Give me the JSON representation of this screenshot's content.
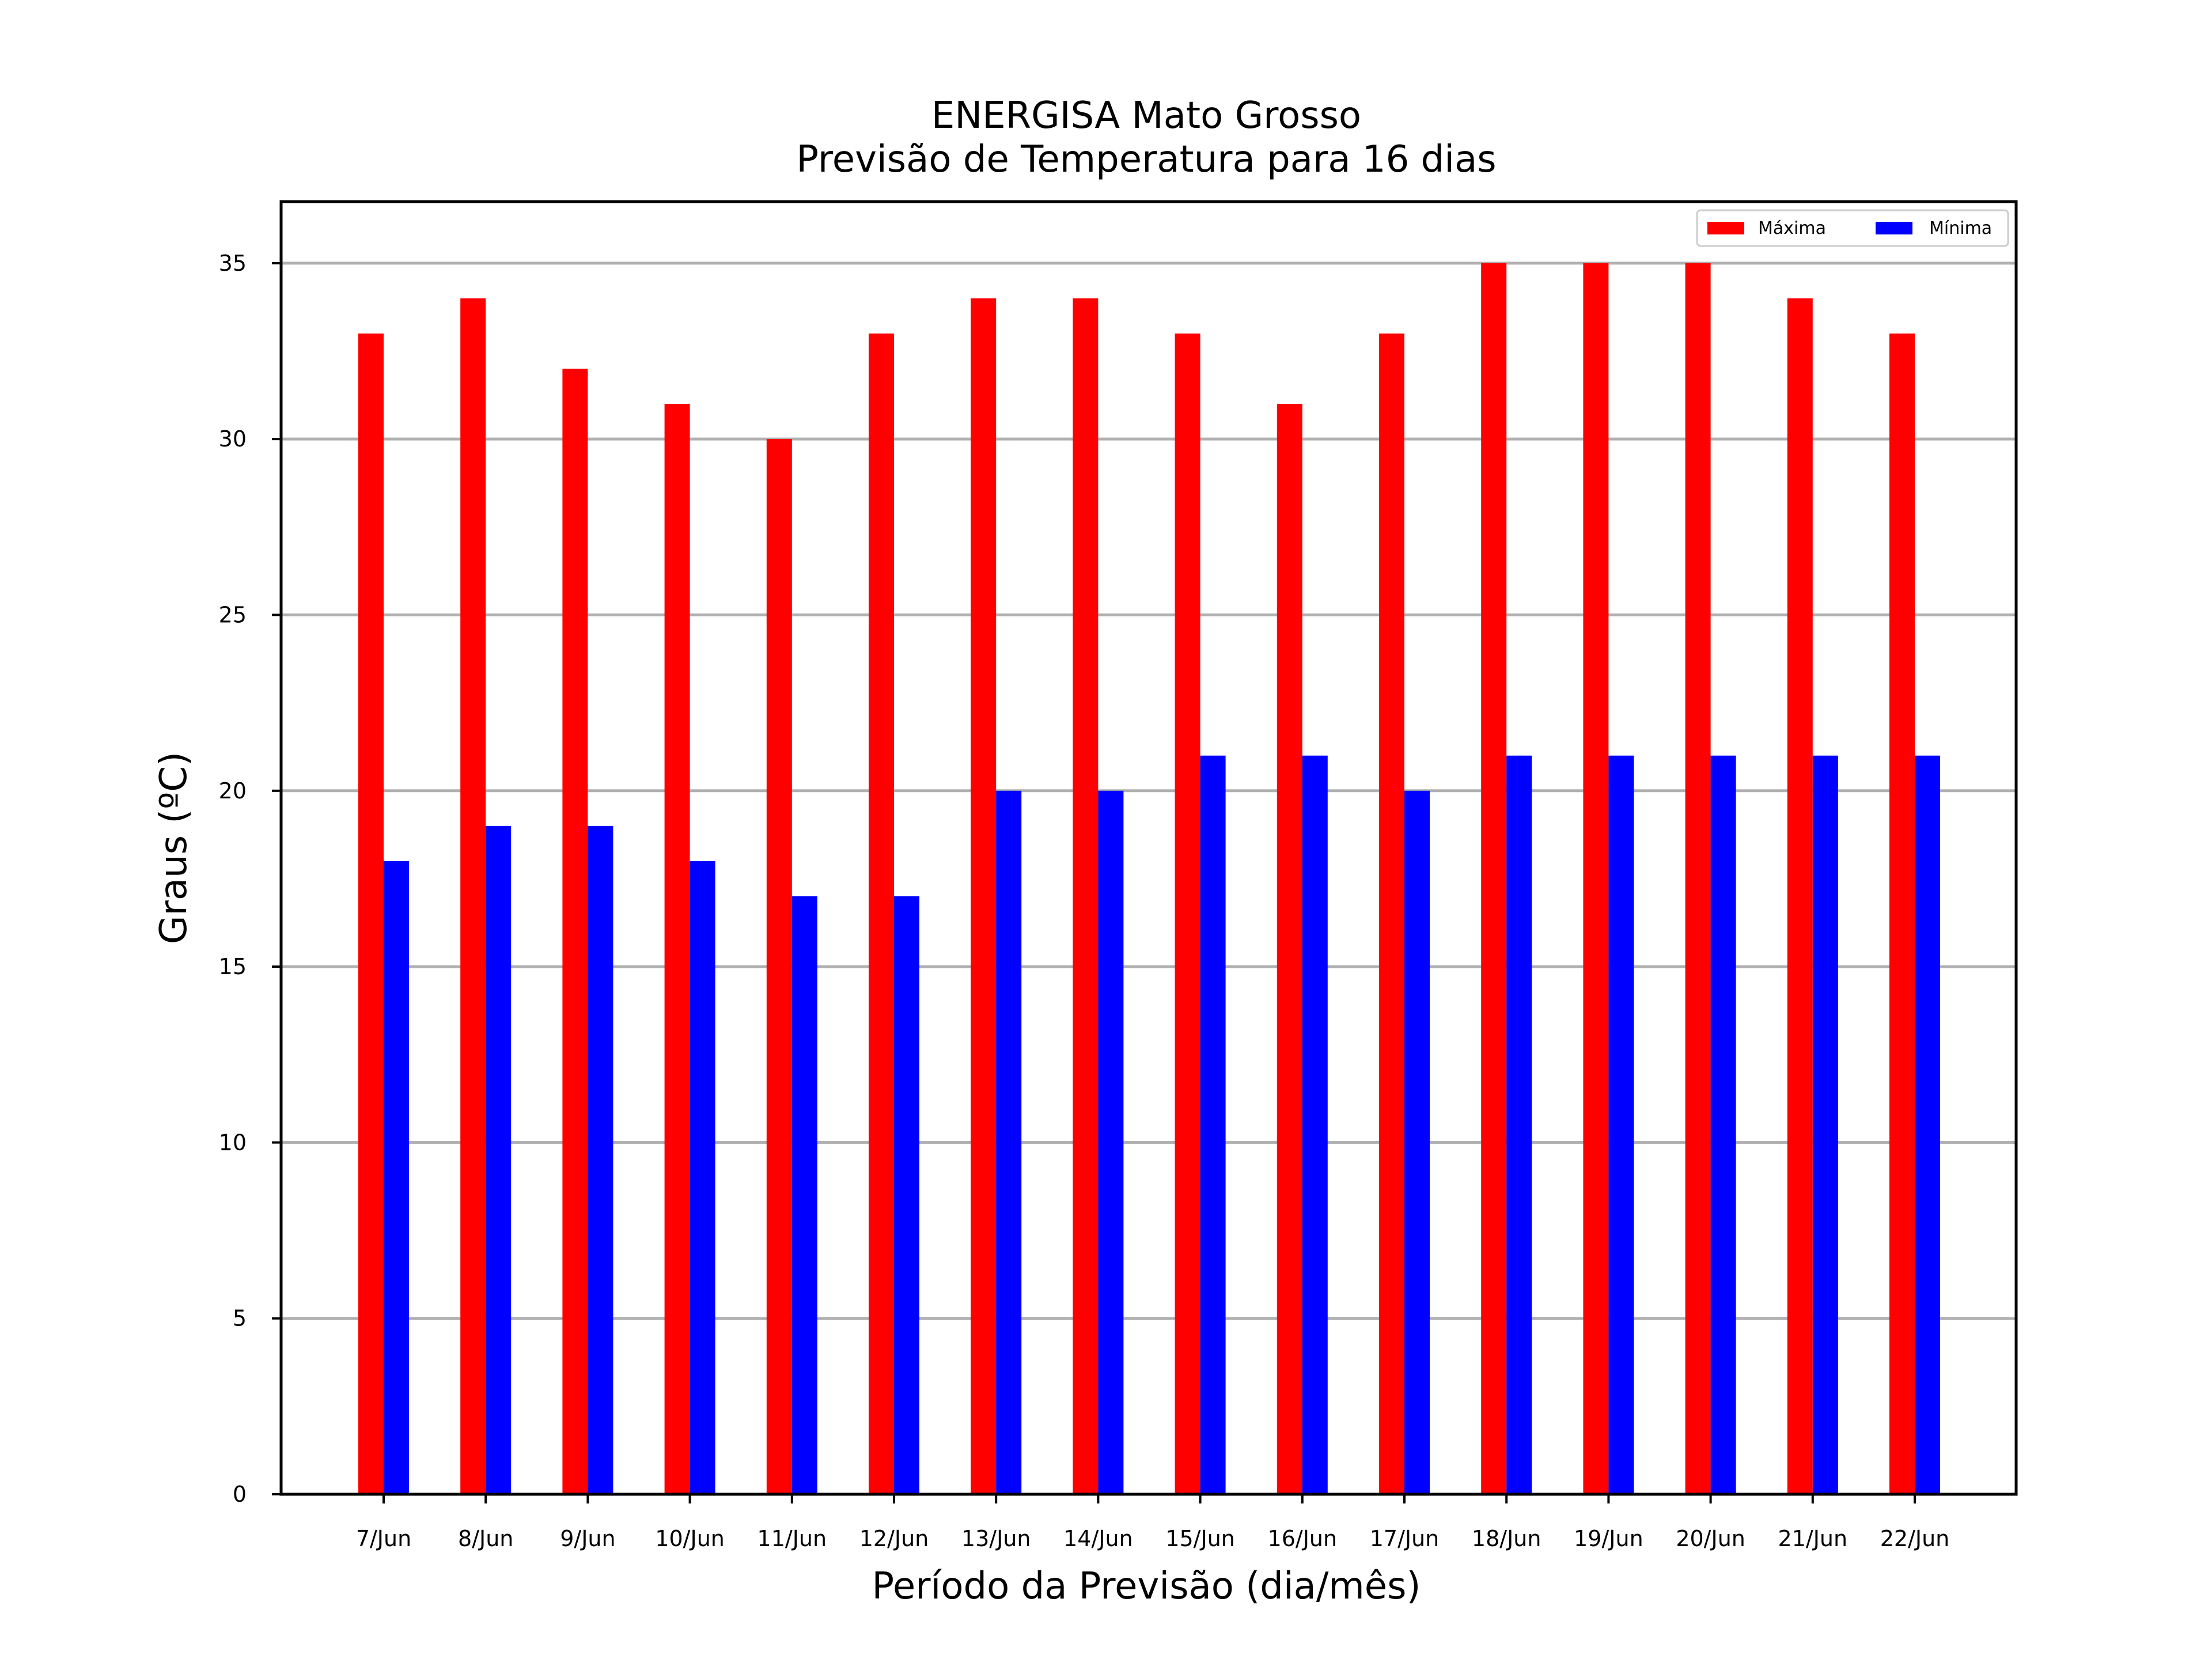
{
  "chart_data": {
    "type": "bar",
    "title": "ENERGISA Mato Grosso",
    "subtitle": "Previsão de Temperatura para 16 dias",
    "xlabel": "Período da Previsão (dia/mês)",
    "ylabel": "Graus (ºC)",
    "ylim": [
      0,
      36.75
    ],
    "yticks": [
      0,
      5,
      10,
      15,
      20,
      25,
      30,
      35
    ],
    "grid": "horizontal",
    "legend_position": "top-right",
    "categories": [
      "7/Jun",
      "8/Jun",
      "9/Jun",
      "10/Jun",
      "11/Jun",
      "12/Jun",
      "13/Jun",
      "14/Jun",
      "15/Jun",
      "16/Jun",
      "17/Jun",
      "18/Jun",
      "19/Jun",
      "20/Jun",
      "21/Jun",
      "22/Jun"
    ],
    "series": [
      {
        "name": "Máxima",
        "color": "#ff0000",
        "values": [
          33,
          34,
          32,
          31,
          30,
          33,
          34,
          34,
          33,
          31,
          33,
          35,
          35,
          35,
          34,
          33
        ]
      },
      {
        "name": "Mínima",
        "color": "#0000ff",
        "values": [
          18,
          19,
          19,
          18,
          17,
          17,
          20,
          20,
          21,
          21,
          20,
          21,
          21,
          21,
          21,
          21
        ]
      }
    ]
  }
}
